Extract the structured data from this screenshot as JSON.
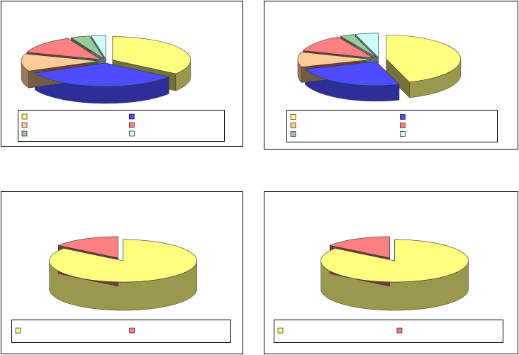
{
  "chart_data": [
    {
      "type": "pie",
      "categories": [
        null,
        null,
        null,
        null,
        null,
        null
      ],
      "values": [
        35,
        33,
        12,
        13,
        4,
        3
      ],
      "colors": [
        "#ffff80",
        "#4d4dff",
        "#ffcc99",
        "#ff8080",
        "#99cc99",
        "#ccffff"
      ]
    },
    {
      "type": "pie",
      "categories": [
        null,
        null,
        null,
        null,
        null,
        null
      ],
      "values": [
        45,
        25,
        10,
        12,
        3,
        5
      ],
      "colors": [
        "#ffff80",
        "#4d4dff",
        "#ffcc99",
        "#ff8080",
        "#99cc99",
        "#ccffff"
      ]
    },
    {
      "type": "pie",
      "categories": [
        null,
        null
      ],
      "values": [
        85,
        15
      ],
      "colors": [
        "#ffff80",
        "#ff8080"
      ]
    },
    {
      "type": "pie",
      "categories": [
        null,
        null
      ],
      "values": [
        85,
        15
      ],
      "colors": [
        "#ffff80",
        "#ff8080"
      ]
    }
  ]
}
